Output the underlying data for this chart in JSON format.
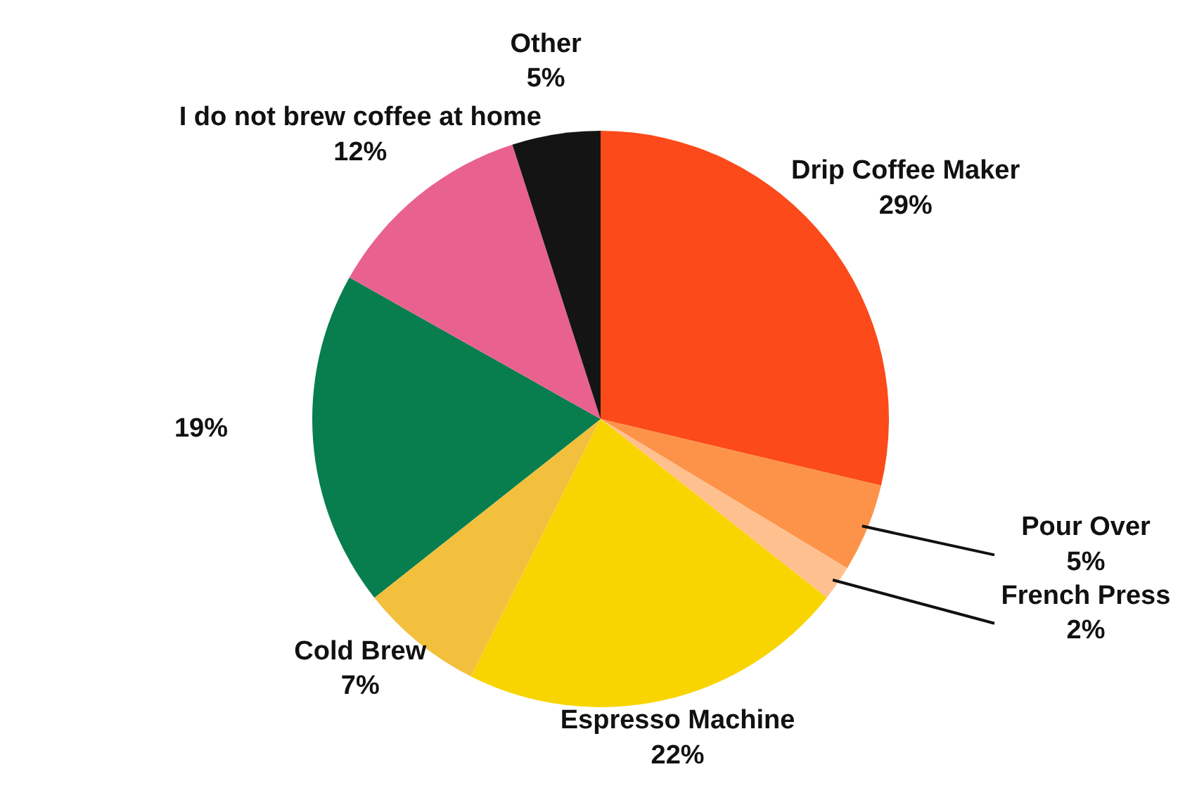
{
  "chart_data": {
    "type": "pie",
    "categories": [
      "Drip Coffee Maker",
      "Pour Over",
      "French Press",
      "Espresso Machine",
      "Cold Brew",
      null,
      "I do not brew coffee at home",
      "Other"
    ],
    "values": [
      29,
      5,
      2,
      22,
      7,
      19,
      12,
      5
    ],
    "value_labels": [
      "29%",
      "5%",
      "2%",
      "22%",
      "7%",
      "19%",
      "12%",
      "5%"
    ],
    "colors": [
      "#fc4a1a",
      "#fd9349",
      "#ffc08f",
      "#f8d500",
      "#f3c03d",
      "#087d4e",
      "#e9618f",
      "#141414"
    ],
    "legend": false
  }
}
